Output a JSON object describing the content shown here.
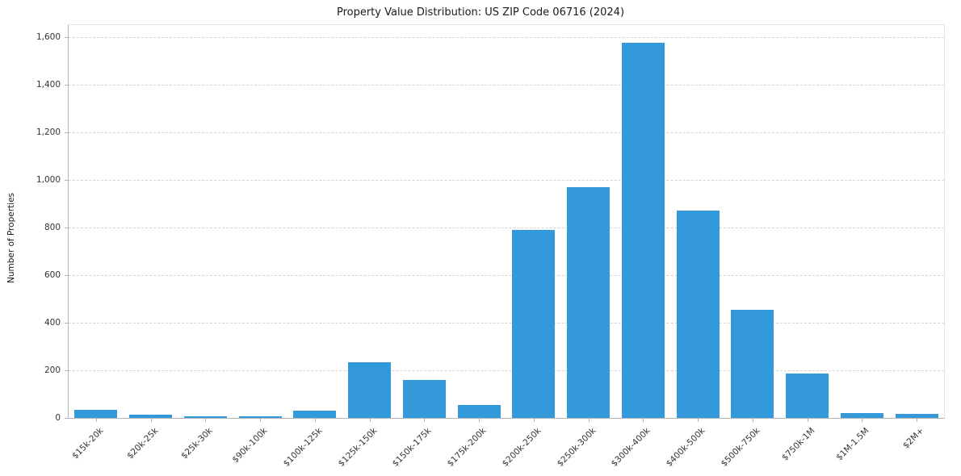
{
  "chart_data": {
    "type": "bar",
    "title": "Property Value Distribution: US ZIP Code 06716 (2024)",
    "xlabel": "",
    "ylabel": "Number of Properties",
    "categories": [
      "$15k-20k",
      "$20k-25k",
      "$25k-30k",
      "$90k-100k",
      "$100k-125k",
      "$125k-150k",
      "$150k-175k",
      "$175k-200k",
      "$200k-250k",
      "$250k-300k",
      "$300k-400k",
      "$400k-500k",
      "$500k-750k",
      "$750k-1M",
      "$1M-1.5M",
      "$2M+"
    ],
    "values": [
      35,
      15,
      8,
      8,
      30,
      235,
      160,
      55,
      790,
      970,
      1575,
      870,
      455,
      185,
      22,
      18
    ],
    "ylim": [
      0,
      1650
    ],
    "yticks": [
      0,
      200,
      400,
      600,
      800,
      1000,
      1200,
      1400,
      1600
    ],
    "ytick_labels": [
      "0",
      "200",
      "400",
      "600",
      "800",
      "1,000",
      "1,200",
      "1,400",
      "1,600"
    ],
    "bar_color": "#3499db",
    "grid": "horizontal-dashed",
    "legend": "none"
  }
}
